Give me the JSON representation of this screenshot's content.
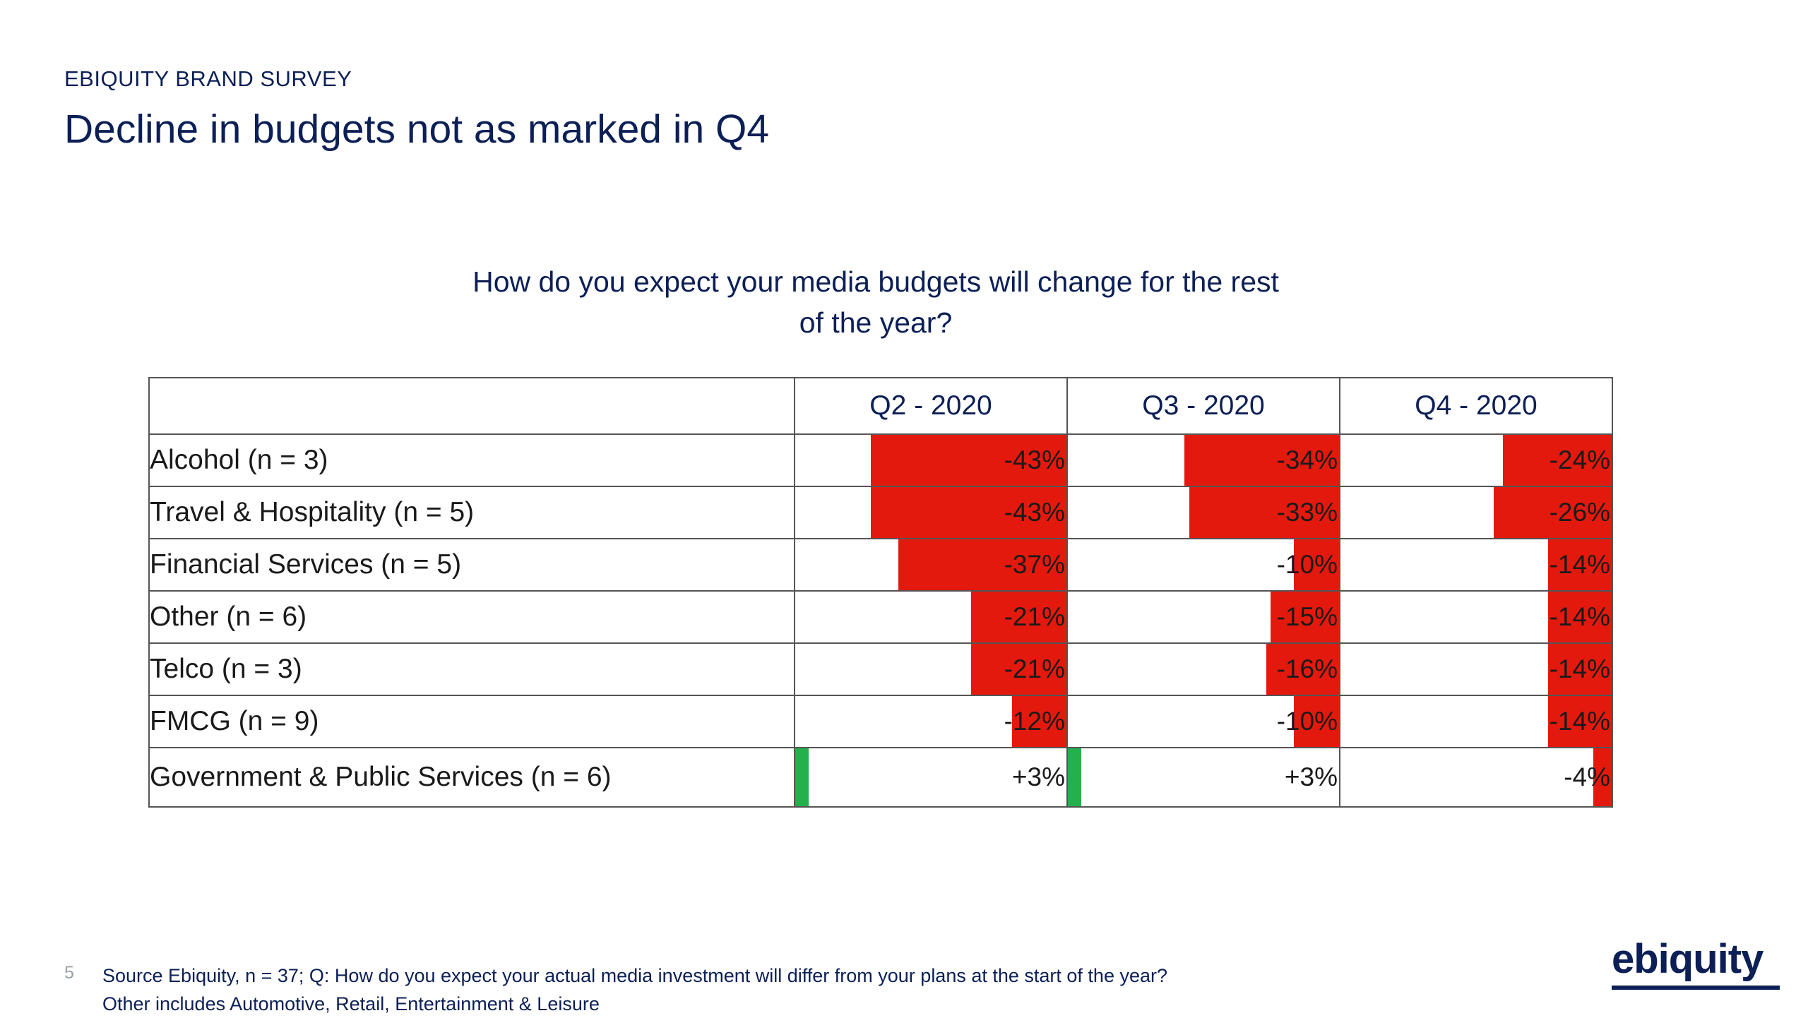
{
  "header": {
    "kicker": "EBIQUITY BRAND SURVEY",
    "title": "Decline in budgets not as marked in Q4"
  },
  "chart_data": {
    "type": "table",
    "title": "How do you expect your media budgets will change for the rest of the year?",
    "title_lines": [
      "How do you expect your media budgets will change for the rest",
      "of the year?"
    ],
    "columns": [
      "Q2 - 2020",
      "Q3 - 2020",
      "Q4 - 2020"
    ],
    "rows": [
      {
        "label": "Alcohol (n = 3)",
        "values": [
          -43,
          -34,
          -24
        ],
        "display": [
          "-43%",
          "-34%",
          "-24%"
        ]
      },
      {
        "label": "Travel & Hospitality (n = 5)",
        "values": [
          -43,
          -33,
          -26
        ],
        "display": [
          "-43%",
          "-33%",
          "-26%"
        ]
      },
      {
        "label": "Financial Services (n = 5)",
        "values": [
          -37,
          -10,
          -14
        ],
        "display": [
          "-37%",
          "-10%",
          "-14%"
        ]
      },
      {
        "label": "Other (n = 6)",
        "values": [
          -21,
          -15,
          -14
        ],
        "display": [
          "-21%",
          "-15%",
          "-14%"
        ]
      },
      {
        "label": "Telco (n = 3)",
        "values": [
          -21,
          -16,
          -14
        ],
        "display": [
          "-21%",
          "-16%",
          "-14%"
        ]
      },
      {
        "label": "FMCG (n = 9)",
        "values": [
          -12,
          -10,
          -14
        ],
        "display": [
          "-12%",
          "-10%",
          "-14%"
        ]
      },
      {
        "label": "Government & Public Services (n = 6)",
        "values": [
          3,
          3,
          -4
        ],
        "display": [
          "+3%",
          "+3%",
          "-4%"
        ]
      }
    ],
    "bar_scale_max": 60,
    "colors": {
      "negative": "#e4190e",
      "positive": "#24b04a"
    }
  },
  "footer": {
    "page_number": "5",
    "source": "Source Ebiquity, n = 37; Q: How do you expect your actual media investment will differ from your plans at the start of the year?",
    "note": "Other includes Automotive, Retail, Entertainment & Leisure"
  },
  "logo": {
    "text": "ebiquity"
  }
}
